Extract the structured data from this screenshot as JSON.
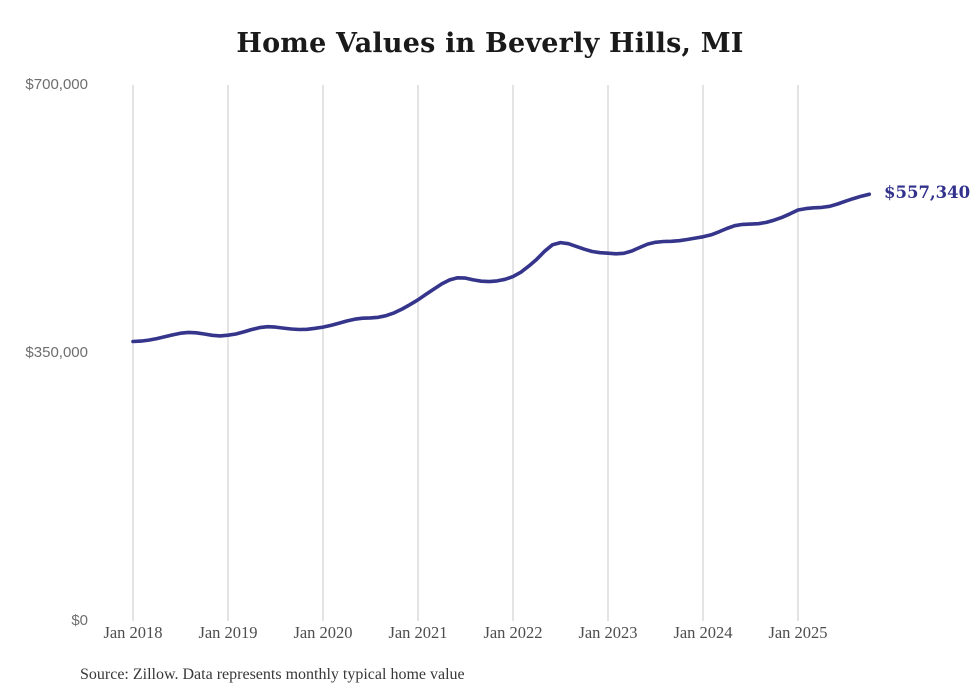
{
  "title": "Home Values in Beverly Hills, MI",
  "source_note": "Source: Zillow. Data represents monthly typical home value",
  "colors": {
    "background": "#ffffff",
    "line": "#35358c",
    "grid": "#c9c9c9",
    "title_text": "#1a1a1a",
    "y_axis_text": "#6e6e6e",
    "x_axis_text": "#4d4d4d",
    "end_label_text": "#32328c",
    "source_text": "#383838"
  },
  "chart_data": {
    "type": "line",
    "title": "Home Values in Beverly Hills, MI",
    "xlabel": "",
    "ylabel": "",
    "ylim": [
      0,
      700000
    ],
    "grid": "vertical-only",
    "legend": "none",
    "x_interval": "monthly",
    "x_start_month": "Jan 2018",
    "x_end_month": "Oct 2025",
    "x_tick_labels": [
      "Jan 2018",
      "Jan 2019",
      "Jan 2020",
      "Jan 2021",
      "Jan 2022",
      "Jan 2023",
      "Jan 2024",
      "Jan 2025"
    ],
    "y_ticks": [
      {
        "label": "$0",
        "value": 0
      },
      {
        "label": "$350,000",
        "value": 350000
      },
      {
        "label": "$700,000",
        "value": 700000
      }
    ],
    "final_value": 557340,
    "final_value_label": "$557,340",
    "series": [
      {
        "name": "Typical home value",
        "monthly_values": [
          365000,
          365500,
          366800,
          368800,
          371200,
          373600,
          375800,
          376900,
          376400,
          374800,
          373100,
          372300,
          373200,
          374800,
          377500,
          380700,
          383200,
          384300,
          383800,
          382500,
          381300,
          380700,
          381000,
          382200,
          383800,
          386000,
          388800,
          391800,
          394200,
          395400,
          395800,
          396600,
          398800,
          402500,
          407500,
          413200,
          419500,
          426500,
          433500,
          440200,
          445500,
          448200,
          447800,
          445500,
          443800,
          443200,
          444200,
          446200,
          449800,
          455500,
          463500,
          472500,
          483000,
          491500,
          494200,
          492800,
          489200,
          485500,
          482500,
          481000,
          480400,
          479600,
          480200,
          483200,
          487800,
          492200,
          494600,
          495600,
          495900,
          496600,
          498200,
          500000,
          501800,
          504200,
          508200,
          512600,
          516200,
          517900,
          518300,
          518900,
          520600,
          523600,
          527200,
          531800,
          536800,
          538600,
          539600,
          540200,
          541600,
          544600,
          548200,
          551600,
          554800,
          557340
        ]
      }
    ]
  }
}
